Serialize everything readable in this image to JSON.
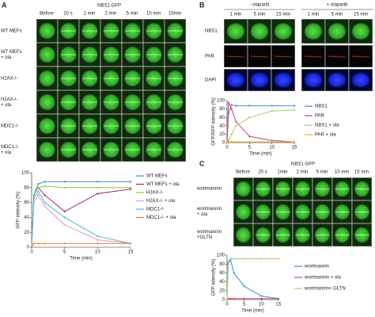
{
  "panels": {
    "A": {
      "label": "A",
      "title": "NBS1-GFP",
      "columns": [
        "Before",
        "20 s",
        "1 min",
        "2 min",
        "5 min",
        "10 min",
        "15min"
      ],
      "rows": [
        [
          "WT MEFs"
        ],
        [
          "WT MEFs",
          "+ ola"
        ],
        [
          "H2AX-/-"
        ],
        [
          "H2AX-/-",
          "+ ola"
        ],
        [
          "MDC1-/-"
        ],
        [
          "MDC1-/-",
          "+ ola"
        ]
      ]
    },
    "B": {
      "label": "B",
      "groups": [
        "- olaparib",
        "+ olaparib"
      ],
      "columns": [
        "1 min",
        "5 min",
        "15 min"
      ],
      "rows": [
        "NBS1",
        "PAR",
        "DAPI"
      ]
    },
    "C": {
      "label": "C",
      "title": "NBS1-GFP",
      "columns": [
        "Before",
        "20 s",
        "1min",
        "2 min",
        "5 min",
        "10 min",
        "15 min"
      ],
      "rows": [
        [
          "wortmannin"
        ],
        [
          "wortmannin",
          "+ ola"
        ],
        [
          "wortmannin",
          "+GLTN"
        ]
      ]
    }
  },
  "chart_data": [
    {
      "type": "line",
      "y_label": "GFP intensity (%)",
      "x_label": "Time (min)",
      "x": [
        0,
        0.33,
        1,
        2,
        5,
        10,
        15
      ],
      "xlim": [
        0,
        15
      ],
      "xticks": [
        0,
        5,
        10,
        15
      ],
      "ylim": [
        0,
        100
      ],
      "yticks": [
        0,
        20,
        40,
        60,
        80,
        100
      ],
      "series": [
        {
          "name": "WT MEFs",
          "color": "#3a8fd8",
          "values": [
            0,
            70,
            85,
            88,
            88,
            88,
            88
          ]
        },
        {
          "name": "WT MEFs + ola",
          "color": "#9b2d4a",
          "values": [
            0,
            70,
            80,
            70,
            48,
            72,
            78
          ]
        },
        {
          "name": "H2AX-/-",
          "color": "#8cc63f",
          "values": [
            0,
            70,
            80,
            82,
            80,
            80,
            80
          ]
        },
        {
          "name": "H2AX-/- + ola",
          "color": "#e59ab8",
          "values": [
            0,
            60,
            70,
            55,
            30,
            10,
            5
          ]
        },
        {
          "name": "MDC1-/-",
          "color": "#40c0d0",
          "values": [
            0,
            65,
            75,
            60,
            40,
            15,
            5
          ]
        },
        {
          "name": "MDC1-/- + ola",
          "color": "#f08030",
          "values": [
            0,
            5,
            5,
            5,
            5,
            5,
            5
          ]
        }
      ]
    },
    {
      "type": "line",
      "y_label": "GFP/RFP intensity (%)",
      "x_label": "Time (min)",
      "x": [
        0,
        0.33,
        1,
        2,
        5,
        10,
        15
      ],
      "xlim": [
        0,
        15
      ],
      "xticks": [
        0,
        5,
        10,
        15
      ],
      "ylim": [
        0,
        100
      ],
      "yticks": [
        0,
        20,
        40,
        60,
        80,
        100
      ],
      "series": [
        {
          "name": "NBS1",
          "color": "#3a8fd8",
          "values": [
            0,
            70,
            90,
            88,
            88,
            88,
            88
          ]
        },
        {
          "name": "PAR",
          "color": "#d0407a",
          "values": [
            0,
            95,
            80,
            50,
            15,
            5,
            2
          ]
        },
        {
          "name": "NBS1 + ola",
          "color": "#9ed36a",
          "values": [
            0,
            5,
            20,
            40,
            60,
            75,
            78
          ]
        },
        {
          "name": "PAR + ola",
          "color": "#f0b030",
          "values": [
            0,
            2,
            2,
            2,
            2,
            2,
            2
          ]
        }
      ]
    },
    {
      "type": "line",
      "y_label": "GFP intensity (%)",
      "x_label": "Time (min)",
      "x": [
        0,
        0.33,
        1,
        2,
        5,
        10,
        15
      ],
      "xlim": [
        0,
        15
      ],
      "xticks": [
        0,
        5,
        10,
        15
      ],
      "ylim": [
        0,
        100
      ],
      "yticks": [
        0,
        20,
        40,
        60,
        80,
        100
      ],
      "series": [
        {
          "name": "wortmannin",
          "color": "#3a8fd8",
          "values": [
            0,
            80,
            90,
            60,
            30,
            8,
            2
          ]
        },
        {
          "name": "wortmannin + ola",
          "color": "#d0407a",
          "values": [
            0,
            2,
            2,
            2,
            2,
            2,
            2
          ]
        },
        {
          "name": "wortmannin+ GLTN",
          "color": "#9ed36a",
          "values": [
            0,
            85,
            92,
            92,
            92,
            92,
            92
          ]
        }
      ]
    }
  ]
}
